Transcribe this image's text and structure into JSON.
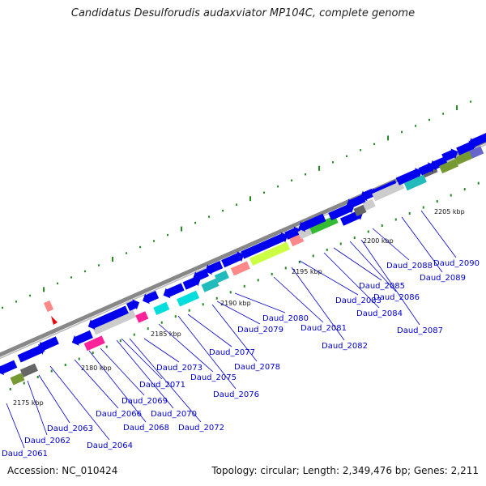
{
  "title": "Candidatus Desulforudis audaxviator MP104C, complete genome",
  "accession": "Accession: NC_010424",
  "summary": "Topology: circular; Length: 2,349,476 bp; Genes: 2,211",
  "colors": {
    "backbone": "#888888",
    "cds": "#0000ee",
    "cyan": "#00dddd",
    "teal": "#22bbbb",
    "lightgray": "#cccccc",
    "darkgray": "#666666",
    "lime": "#ccff44",
    "green": "#33bb33",
    "olive": "#779933",
    "pink": "#ff8888",
    "magenta": "#ff2299",
    "purple": "#6666cc",
    "label": "#0000cc",
    "tick": "#228822",
    "marker": "#ee0000"
  },
  "kbp_marks": [
    "2175 kbp",
    "2180 kbp",
    "2185 kbp",
    "2190 kbp",
    "2195 kbp",
    "2200 kbp",
    "2205 kbp"
  ],
  "gene_labels": [
    "Daud_2061",
    "Daud_2062",
    "Daud_2063",
    "Daud_2064",
    "Daud_2066",
    "Daud_2068",
    "Daud_2069",
    "Daud_2070",
    "Daud_2071",
    "Daud_2072",
    "Daud_2073",
    "Daud_2075",
    "Daud_2076",
    "Daud_2077",
    "Daud_2078",
    "Daud_2079",
    "Daud_2080",
    "Daud_2081",
    "Daud_2082",
    "Daud_2083",
    "Daud_2084",
    "Daud_2085",
    "Daud_2086",
    "Daud_2087",
    "Daud_2088",
    "Daud_2089",
    "Daud_2090"
  ]
}
